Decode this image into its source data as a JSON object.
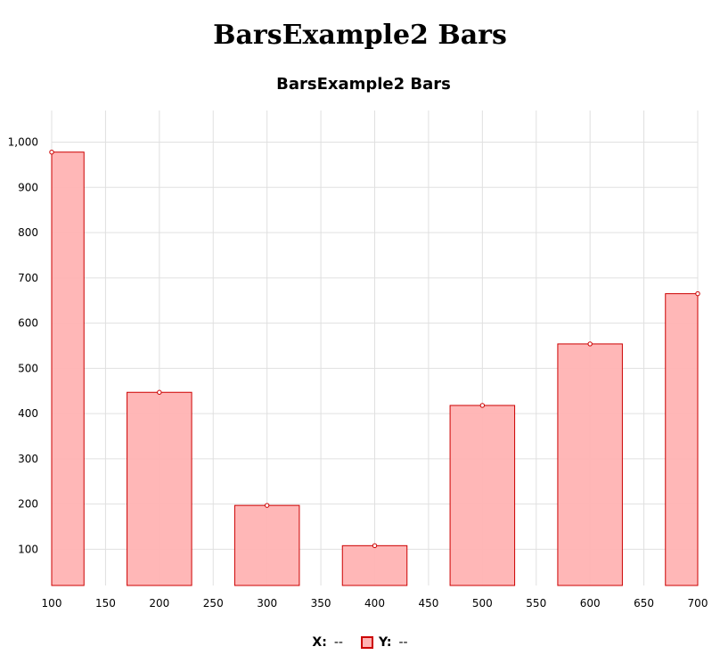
{
  "page": {
    "title": "BarsExample2 Bars"
  },
  "chart_data": {
    "type": "bar",
    "title": "BarsExample2 Bars",
    "x": [
      100,
      200,
      300,
      400,
      500,
      600,
      700
    ],
    "values": [
      978,
      447,
      197,
      108,
      418,
      554,
      665
    ],
    "bar_width": 60,
    "xlim": [
      100,
      700
    ],
    "ylim": [
      20,
      1070
    ],
    "x_ticks": [
      100,
      150,
      200,
      250,
      300,
      350,
      400,
      450,
      500,
      550,
      600,
      650,
      700
    ],
    "x_tick_labels": [
      "100",
      "150",
      "200",
      "250",
      "300",
      "350",
      "400",
      "450",
      "500",
      "550",
      "600",
      "650",
      "700"
    ],
    "y_ticks": [
      100,
      200,
      300,
      400,
      500,
      600,
      700,
      800,
      900,
      1000
    ],
    "y_tick_labels": [
      "100",
      "200",
      "300",
      "400",
      "500",
      "600",
      "700",
      "800",
      "900",
      "1,000"
    ],
    "grid": true,
    "legend_placement": "bottom-center",
    "colors": {
      "bar_fill": "#ffb3b3",
      "bar_stroke": "#cc0000",
      "grid": "#e0e0e0"
    }
  },
  "legend": {
    "x_label": "X:",
    "x_value": "--",
    "y_label": "Y:",
    "y_value": "--"
  }
}
